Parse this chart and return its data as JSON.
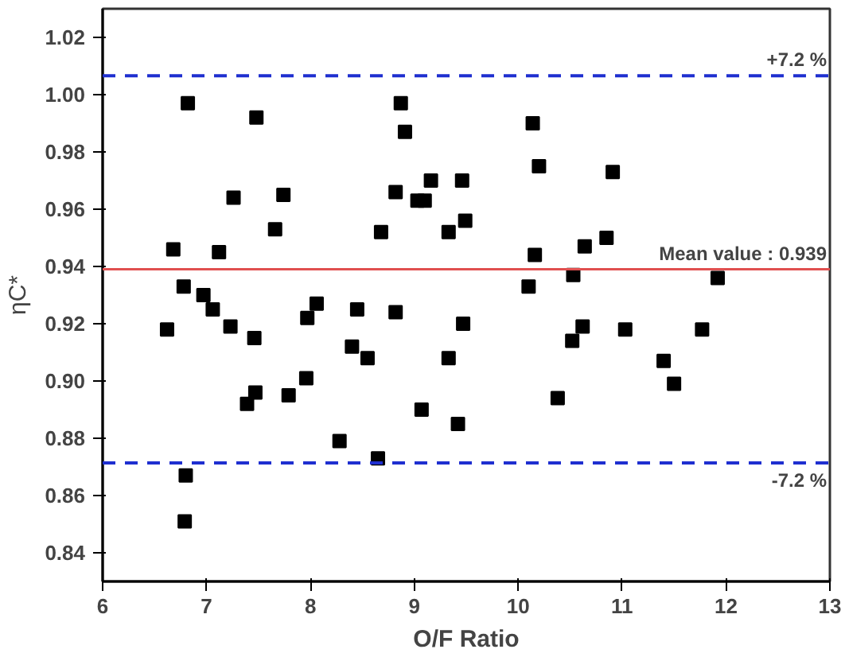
{
  "chart_data": {
    "type": "scatter",
    "xlabel": "O/F Ratio",
    "ylabel": "ηC*",
    "marker": "square",
    "grid": false,
    "xlim": [
      6,
      13
    ],
    "ylim": [
      0.83,
      1.03
    ],
    "xticks": [
      6,
      7,
      8,
      9,
      10,
      11,
      12,
      13
    ],
    "yticks": [
      0.84,
      0.86,
      0.88,
      {
        "value": 0.9,
        "label": "0.90"
      },
      0.92,
      0.94,
      0.96,
      0.98,
      {
        "value": 1.0,
        "label": "1.00"
      },
      1.02
    ],
    "ref_lines": [
      {
        "axis": "y",
        "value": 1.0066,
        "color": "#1f2fd0",
        "line_style": "dashed"
      },
      {
        "axis": "y",
        "value": 0.939,
        "label": "Mean value : 0.939",
        "color": "#e05050",
        "line_style": "solid"
      },
      {
        "axis": "y",
        "value": 0.8714,
        "color": "#1f2fd0",
        "line_style": "dashed"
      }
    ],
    "annotations": [
      {
        "text": "+7.2 %",
        "x": 13,
        "y": 1.0066
      },
      {
        "text": "-7.2 %",
        "x": 13,
        "y": 0.8714
      }
    ],
    "series": [
      {
        "color": "#000000",
        "x": [
          6.62,
          6.68,
          6.78,
          6.82,
          6.8,
          6.79,
          6.97,
          7.06,
          7.12,
          7.23,
          7.26,
          7.39,
          7.46,
          7.47,
          7.48,
          7.66,
          7.74,
          7.79,
          7.96,
          7.97,
          8.06,
          8.28,
          8.4,
          8.45,
          8.55,
          8.65,
          8.68,
          8.82,
          8.82,
          8.87,
          8.91,
          9.03,
          9.07,
          9.1,
          9.16,
          9.33,
          9.33,
          9.42,
          9.46,
          9.47,
          9.49,
          10.1,
          10.14,
          10.16,
          10.2,
          10.38,
          10.52,
          10.53,
          10.62,
          10.64,
          10.85,
          10.91,
          11.03,
          11.4,
          11.5,
          11.77,
          11.92
        ],
        "values": [
          0.918,
          0.946,
          0.933,
          0.997,
          0.867,
          0.851,
          0.93,
          0.925,
          0.945,
          0.919,
          0.964,
          0.892,
          0.915,
          0.896,
          0.992,
          0.953,
          0.965,
          0.895,
          0.901,
          0.922,
          0.927,
          0.879,
          0.912,
          0.925,
          0.908,
          0.873,
          0.952,
          0.924,
          0.966,
          0.997,
          0.987,
          0.963,
          0.89,
          0.963,
          0.97,
          0.952,
          0.908,
          0.885,
          0.97,
          0.92,
          0.956,
          0.933,
          0.99,
          0.944,
          0.975,
          0.894,
          0.914,
          0.937,
          0.919,
          0.947,
          0.95,
          0.973,
          0.918,
          0.907,
          0.899,
          0.918,
          0.936
        ]
      }
    ]
  }
}
